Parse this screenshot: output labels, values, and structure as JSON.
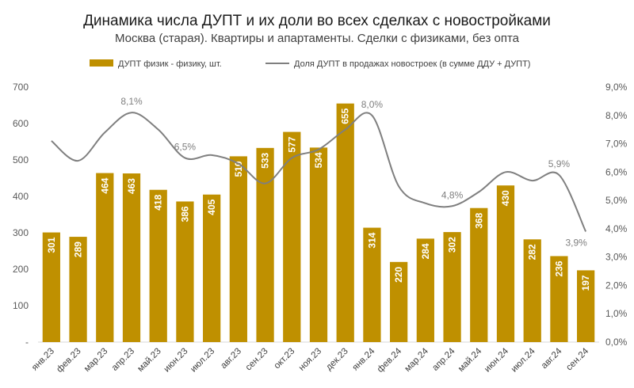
{
  "chart_data": {
    "type": "bar",
    "title": "Динамика числа ДУПТ и их доли во всех сделках с новостройками",
    "subtitle": "Москва (старая). Квартиры и апартаменты. Сделки с физиками, без опта",
    "categories": [
      "янв.23",
      "фев.23",
      "мар.23",
      "апр.23",
      "май.23",
      "июн.23",
      "июл.23",
      "авг.23",
      "сен.23",
      "окт.23",
      "ноя.23",
      "дек.23",
      "янв.24",
      "фев.24",
      "мар.24",
      "апр.24",
      "май.24",
      "июн.24",
      "июл.24",
      "авг.24",
      "сен.24"
    ],
    "series": [
      {
        "name": "ДУПТ физик - физику, шт.",
        "type": "bar",
        "axis": "left",
        "color": "#BF9000",
        "values": [
          301,
          289,
          464,
          463,
          418,
          386,
          405,
          510,
          533,
          577,
          534,
          655,
          314,
          220,
          284,
          302,
          368,
          430,
          282,
          236,
          197
        ]
      },
      {
        "name": "Доля ДУПТ в продажах новостроек (в сумме ДДУ + ДУПТ)",
        "type": "line",
        "axis": "right",
        "color": "#7F7F7F",
        "values": [
          7.1,
          6.4,
          7.4,
          8.1,
          7.5,
          6.5,
          6.6,
          6.3,
          5.6,
          6.5,
          6.8,
          7.5,
          8.0,
          5.5,
          4.9,
          4.8,
          5.3,
          6.0,
          5.7,
          5.9,
          3.9
        ],
        "labels": [
          {
            "index": 3,
            "text": "8,1%"
          },
          {
            "index": 5,
            "text": "6,5%"
          },
          {
            "index": 12,
            "text": "8,0%"
          },
          {
            "index": 15,
            "text": "4,8%"
          },
          {
            "index": 19,
            "text": "5,9%"
          },
          {
            "index": 20,
            "text": "3,9%"
          }
        ]
      }
    ],
    "y_left": {
      "min": 0,
      "max": 700,
      "ticks": [
        "-",
        "100",
        "200",
        "300",
        "400",
        "500",
        "600",
        "700"
      ]
    },
    "y_right": {
      "min": 0,
      "max": 9,
      "ticks": [
        "0,0%",
        "1,0%",
        "2,0%",
        "3,0%",
        "4,0%",
        "5,0%",
        "6,0%",
        "7,0%",
        "8,0%",
        "9,0%"
      ]
    },
    "legend_position": "top",
    "grid": false
  }
}
